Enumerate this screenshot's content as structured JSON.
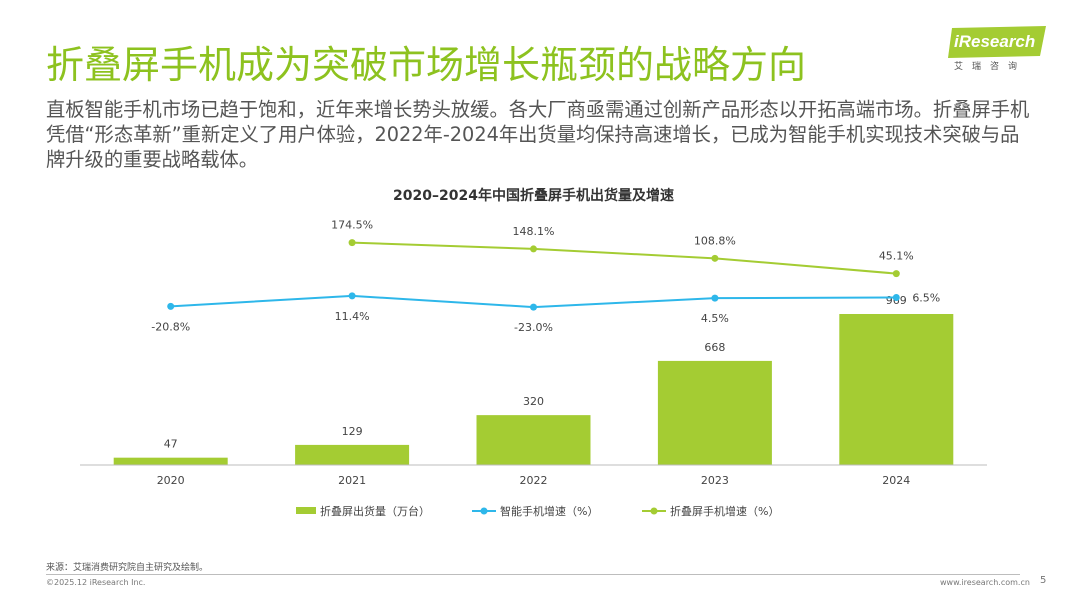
{
  "page": {
    "title": "折叠屏手机成为突破市场增长瓶颈的战略方向",
    "description": "直板智能手机市场已趋于饱和，近年来增长势头放缓。各大厂商亟需通过创新产品形态以开拓高端市场。折叠屏手机凭借“形态革新”重新定义了用户体验，2022年-2024年出货量均保持高速增长，已成为智能手机实现技术突破与品牌升级的重要战略载体。",
    "logo_text": "iResearch",
    "logo_sub": "艾瑞咨询",
    "source": "来源：艾瑞消费研究院自主研究及绘制。",
    "copyright": "©2025.12 iResearch Inc.",
    "website": "www.iresearch.com.cn",
    "page_number": "5"
  },
  "colors": {
    "title_green": "#8dc21f",
    "bar_green": "#a4cc33",
    "line_blue": "#2eb7ea",
    "line_green": "#a4cc33"
  },
  "chart_data": {
    "type": "bar",
    "title": "2020–2024年中国折叠屏手机出货量及增速",
    "categories": [
      "2020",
      "2021",
      "2022",
      "2023",
      "2024"
    ],
    "series": [
      {
        "name": "折叠屏出货量（万台）",
        "type": "bar",
        "values": [
          47,
          129,
          320,
          668,
          969
        ],
        "labels": [
          "47",
          "129",
          "320",
          "668",
          "969"
        ]
      },
      {
        "name": "智能手机增速（%）",
        "type": "line",
        "values": [
          -20.8,
          11.4,
          -23.0,
          4.5,
          6.5
        ],
        "labels": [
          "-20.8%",
          "11.4%",
          "-23.0%",
          "4.5%",
          "6.5%"
        ]
      },
      {
        "name": "折叠屏手机增速（%）",
        "type": "line",
        "values": [
          null,
          174.5,
          148.1,
          108.8,
          45.1
        ],
        "labels": [
          "",
          "174.5%",
          "148.1%",
          "108.8%",
          "45.1%"
        ]
      }
    ],
    "legend_position": "bottom",
    "grid": false
  }
}
